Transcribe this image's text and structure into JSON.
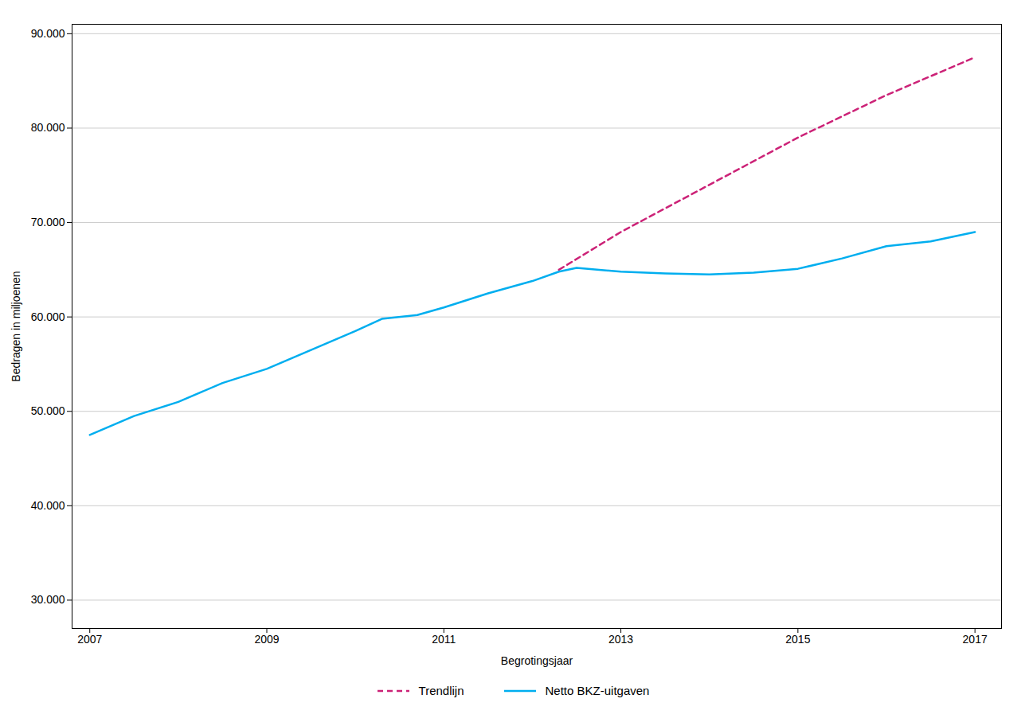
{
  "chart_data": {
    "type": "line",
    "xlabel": "Begrotingsjaar",
    "ylabel": "Bedragen in miljoenen",
    "series": [
      {
        "name": "Trendlijn",
        "color": "#CC2277",
        "line_style": "dashed",
        "x": [
          2012.3,
          2013,
          2014,
          2015,
          2016,
          2017
        ],
        "values": [
          65000,
          69000,
          74000,
          79000,
          83500,
          87500
        ]
      },
      {
        "name": "Netto BKZ-uitgaven",
        "color": "#00AEEF",
        "line_style": "solid",
        "x": [
          2007,
          2007.5,
          2008,
          2008.5,
          2009,
          2009.5,
          2010,
          2010.3,
          2010.7,
          2011,
          2011.5,
          2012,
          2012.3,
          2012.5,
          2013,
          2013.5,
          2014,
          2014.5,
          2015,
          2015.5,
          2016,
          2016.5,
          2017
        ],
        "values": [
          47500,
          49500,
          51000,
          53000,
          54500,
          56500,
          58500,
          59800,
          60200,
          61000,
          62500,
          63800,
          64800,
          65200,
          64800,
          64600,
          64500,
          64700,
          65100,
          66200,
          67500,
          68000,
          69000
        ]
      }
    ],
    "xlim": [
      2006.8,
      2017.3
    ],
    "xticks": [
      2007,
      2009,
      2011,
      2013,
      2015,
      2017
    ],
    "ylim": [
      27000,
      91000
    ],
    "yticks": [
      {
        "value": 30000,
        "label": "30.000"
      },
      {
        "value": 40000,
        "label": "40.000"
      },
      {
        "value": 50000,
        "label": "50.000"
      },
      {
        "value": 60000,
        "label": "60.000"
      },
      {
        "value": 70000,
        "label": "70.000"
      },
      {
        "value": 80000,
        "label": "80.000"
      },
      {
        "value": 90000,
        "label": "90.000"
      }
    ],
    "grid": "y",
    "legend": "bottom"
  }
}
